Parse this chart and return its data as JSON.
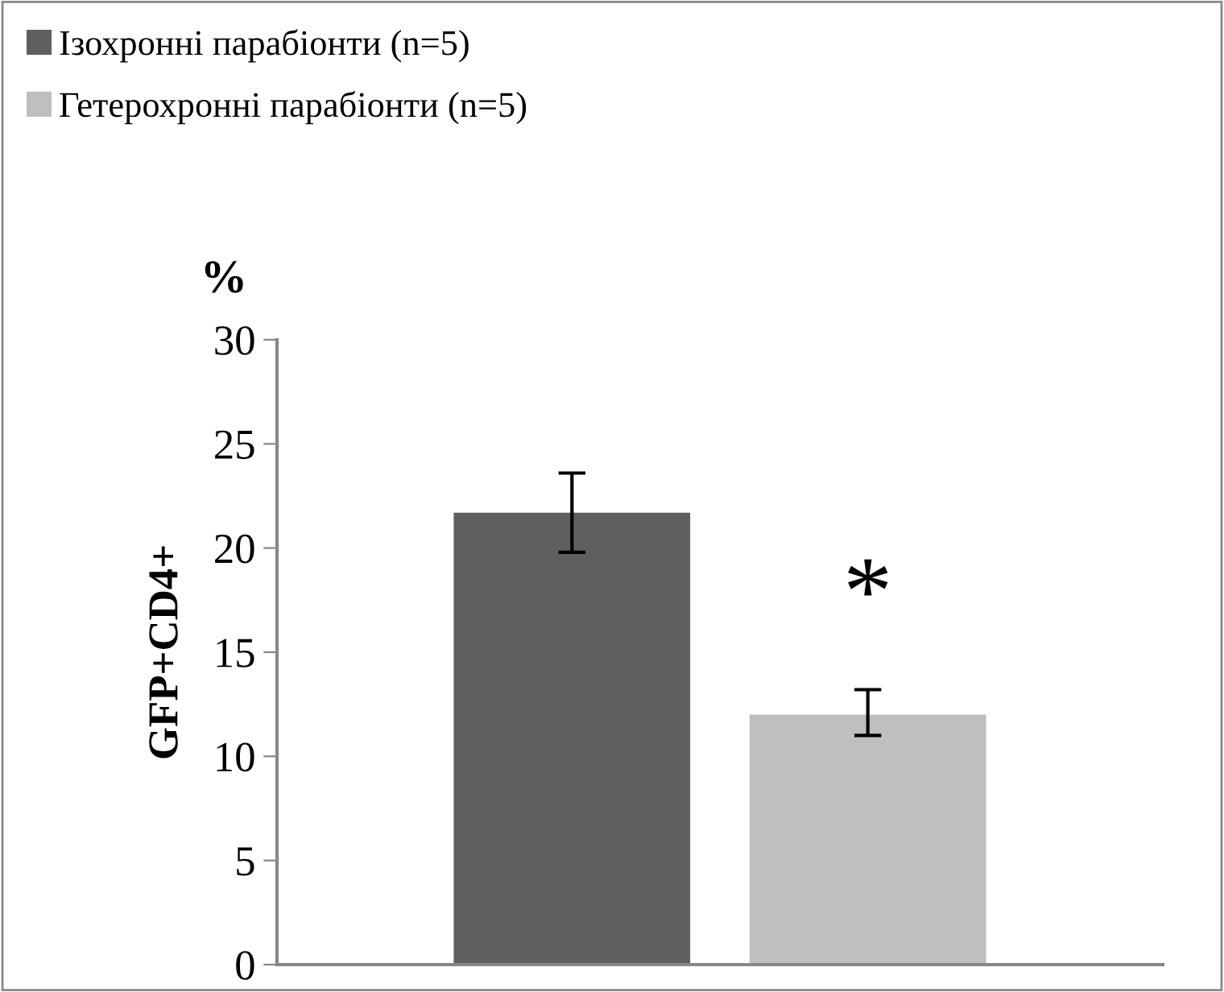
{
  "chart_data": {
    "type": "bar",
    "ylabel": "GFP+CD4+",
    "categories": [
      null
    ],
    "series": [
      {
        "name": "Ізохронні парабіонти (n=5)",
        "color": "#5f5f5f",
        "values": [
          21.7
        ],
        "errors": [
          [
            19.8,
            23.6
          ]
        ]
      },
      {
        "name": "Гетерохронні парабіонти (n=5)",
        "color": "#bfbfbf",
        "values": [
          12.0
        ],
        "errors": [
          [
            11.0,
            13.2
          ]
        ]
      }
    ],
    "annotations": [
      "%",
      "*"
    ],
    "ylim": [
      0,
      30
    ],
    "yticks": [
      0,
      5,
      10,
      15,
      20,
      25,
      30
    ],
    "grid": false,
    "legend": "top left"
  }
}
